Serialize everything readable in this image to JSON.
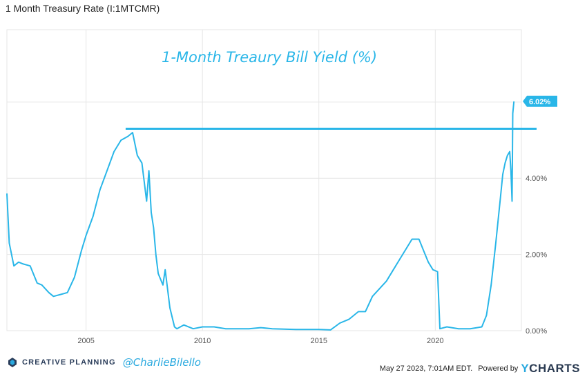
{
  "header": {
    "title": "1 Month Treasury Rate (I:1MTCMR)"
  },
  "annotation": {
    "text": "1-Month Treaury Bill Yield (%)"
  },
  "footer": {
    "brand": "CREATIVE PLANNING",
    "handle": "@CharlieBilello",
    "timestamp": "May 27 2023, 7:01AM EDT.",
    "powered_by": "Powered by",
    "ycharts_y": "Y",
    "ycharts_rest": "CHARTS"
  },
  "colors": {
    "line": "#29b6e8",
    "grid": "#e6e6e6",
    "text": "#555555",
    "label_bg": "#29b6e8"
  },
  "chart_data": {
    "type": "line",
    "title": "1 Month Treasury Rate (I:1MTCMR)",
    "x_ticks": [
      "2005",
      "2010",
      "2015",
      "2020"
    ],
    "x_tick_values": [
      2005,
      2010,
      2015,
      2020
    ],
    "y_ticks": [
      "0.00%",
      "2.00%",
      "4.00%"
    ],
    "y_tick_values": [
      0,
      2,
      4
    ],
    "xlim": [
      2001.6,
      2023.7
    ],
    "ylim": [
      0,
      7.9
    ],
    "grid": true,
    "last_value_label": "6.02%",
    "last_value": 6.02,
    "reference_line": {
      "value": 5.3,
      "x_start": 2006.7,
      "x_end": 2023.7
    },
    "series": [
      {
        "x": [
          2001.6,
          2001.7,
          2001.9,
          2002.1,
          2002.3,
          2002.6,
          2002.9,
          2003.1,
          2003.4,
          2003.6,
          2003.9,
          2004.2,
          2004.5,
          2004.8,
          2005.0,
          2005.3,
          2005.6,
          2005.9,
          2006.2,
          2006.5,
          2006.8,
          2007.0,
          2007.2,
          2007.4,
          2007.6,
          2007.7,
          2007.8,
          2007.9,
          2008.0,
          2008.1,
          2008.3,
          2008.4,
          2008.6,
          2008.8,
          2008.9,
          2009.2,
          2009.6,
          2010.0,
          2010.5,
          2011.0,
          2011.5,
          2012.0,
          2012.5,
          2013.0,
          2013.5,
          2014.0,
          2014.5,
          2015.0,
          2015.5,
          2015.9,
          2016.3,
          2016.7,
          2017.0,
          2017.3,
          2017.6,
          2017.9,
          2018.2,
          2018.5,
          2018.8,
          2019.0,
          2019.3,
          2019.5,
          2019.7,
          2019.9,
          2020.1,
          2020.2,
          2020.5,
          2021.0,
          2021.5,
          2022.0,
          2022.2,
          2022.4,
          2022.6,
          2022.8,
          2022.9,
          2023.0,
          2023.1,
          2023.2,
          2023.25,
          2023.3,
          2023.33,
          2023.38
        ],
        "y": [
          3.6,
          2.3,
          1.7,
          1.8,
          1.75,
          1.7,
          1.25,
          1.2,
          1.0,
          0.9,
          0.95,
          1.0,
          1.4,
          2.1,
          2.5,
          3.0,
          3.7,
          4.2,
          4.7,
          5.0,
          5.1,
          5.2,
          4.6,
          4.4,
          3.4,
          4.2,
          3.1,
          2.7,
          2.0,
          1.5,
          1.2,
          1.6,
          0.6,
          0.1,
          0.05,
          0.15,
          0.05,
          0.1,
          0.1,
          0.05,
          0.05,
          0.05,
          0.08,
          0.05,
          0.04,
          0.03,
          0.03,
          0.03,
          0.02,
          0.2,
          0.3,
          0.5,
          0.5,
          0.9,
          1.1,
          1.3,
          1.6,
          1.9,
          2.2,
          2.4,
          2.4,
          2.1,
          1.8,
          1.6,
          1.55,
          0.05,
          0.1,
          0.05,
          0.05,
          0.1,
          0.4,
          1.2,
          2.3,
          3.5,
          4.1,
          4.4,
          4.6,
          4.7,
          4.2,
          3.4,
          5.7,
          6.02
        ]
      }
    ]
  }
}
